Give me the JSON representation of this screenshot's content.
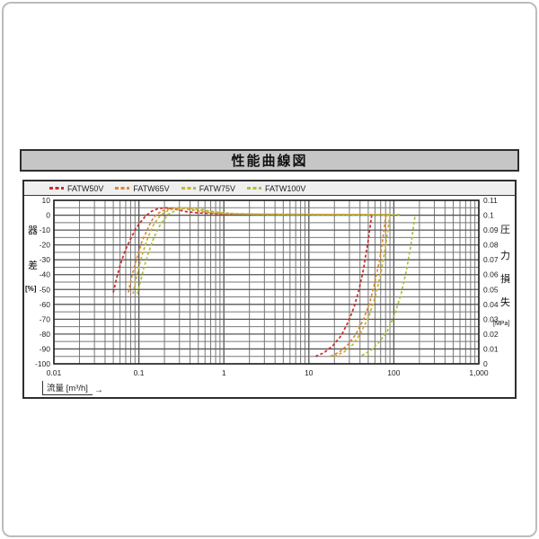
{
  "page": {
    "title": "性能曲線図"
  },
  "chart": {
    "left_axis_title": [
      "器",
      "差",
      "[%]"
    ],
    "right_axis_title": [
      "圧",
      "力",
      "損",
      "失",
      "[MPa]"
    ],
    "x_axis_label": "流量 [m³/h]",
    "x_axis_arrow": "→",
    "colors": {
      "grid_major": "#555555",
      "grid_minor": "#777777",
      "plot_frame": "#222222",
      "title_bg": "#c6c6c6",
      "legend_bg": "#efefef"
    }
  },
  "chart_data": {
    "type": "line",
    "title": "性能曲線図",
    "xlabel": "流量 [m³/h]",
    "ylabel_left": "器差 [%]",
    "ylabel_right": "圧力損失 [MPa]",
    "x_scale": "log",
    "xlim": [
      0.01,
      1000
    ],
    "x_tick_labels": [
      "0.01",
      "0.1",
      "1",
      "10",
      "100",
      "1,000"
    ],
    "ylim_left": [
      -100,
      10
    ],
    "left_tick_labels": [
      "10",
      "0",
      "-10",
      "-20",
      "-30",
      "-40",
      "-50",
      "-60",
      "-70",
      "-80",
      "-90",
      "-100"
    ],
    "ylim_right": [
      0,
      0.11
    ],
    "right_tick_labels": [
      "0.11",
      "0.1",
      "0.09",
      "0.08",
      "0.07",
      "0.06",
      "0.05",
      "0.04",
      "0.03",
      "0.02",
      "0.01",
      "0"
    ],
    "grid": true,
    "legend_position": "top",
    "series": [
      {
        "name": "FATW50V",
        "color": "#cc2929",
        "dash": true,
        "error_curve_pct": [
          [
            0.05,
            -52
          ],
          [
            0.055,
            -42
          ],
          [
            0.06,
            -34
          ],
          [
            0.065,
            -28
          ],
          [
            0.07,
            -23
          ],
          [
            0.08,
            -16
          ],
          [
            0.09,
            -10
          ],
          [
            0.1,
            -6
          ],
          [
            0.12,
            -0.5
          ],
          [
            0.14,
            2.5
          ],
          [
            0.17,
            4.5
          ],
          [
            0.21,
            5
          ],
          [
            0.27,
            4
          ],
          [
            0.35,
            2.5
          ],
          [
            0.5,
            1.5
          ],
          [
            0.8,
            1
          ],
          [
            2,
            0.6
          ],
          [
            8,
            0.4
          ],
          [
            25,
            0.3
          ],
          [
            55,
            0.3
          ]
        ],
        "pressure_loss_mpa": [
          [
            12,
            0.005
          ],
          [
            15,
            0.0074
          ],
          [
            19,
            0.012
          ],
          [
            24,
            0.019
          ],
          [
            29,
            0.028
          ],
          [
            34,
            0.038
          ],
          [
            39,
            0.05
          ],
          [
            44,
            0.064
          ],
          [
            50,
            0.083
          ],
          [
            55,
            0.1
          ]
        ]
      },
      {
        "name": "FATW65V",
        "color": "#e0862e",
        "dash": true,
        "error_curve_pct": [
          [
            0.075,
            -52
          ],
          [
            0.082,
            -42
          ],
          [
            0.09,
            -33
          ],
          [
            0.1,
            -24
          ],
          [
            0.11,
            -17
          ],
          [
            0.125,
            -10
          ],
          [
            0.14,
            -4
          ],
          [
            0.16,
            0.5
          ],
          [
            0.19,
            3
          ],
          [
            0.24,
            4.8
          ],
          [
            0.3,
            5
          ],
          [
            0.4,
            3.8
          ],
          [
            0.55,
            2.3
          ],
          [
            0.8,
            1.3
          ],
          [
            1.5,
            0.8
          ],
          [
            4,
            0.5
          ],
          [
            15,
            0.4
          ],
          [
            82,
            0.3
          ]
        ],
        "pressure_loss_mpa": [
          [
            18,
            0.005
          ],
          [
            23,
            0.008
          ],
          [
            29,
            0.013
          ],
          [
            36,
            0.02
          ],
          [
            44,
            0.03
          ],
          [
            52,
            0.041
          ],
          [
            60,
            0.055
          ],
          [
            68,
            0.07
          ],
          [
            75,
            0.086
          ],
          [
            81,
            0.1
          ]
        ]
      },
      {
        "name": "FATW75V",
        "color": "#c9b430",
        "dash": true,
        "error_curve_pct": [
          [
            0.085,
            -53
          ],
          [
            0.093,
            -43
          ],
          [
            0.102,
            -33
          ],
          [
            0.113,
            -24
          ],
          [
            0.13,
            -14
          ],
          [
            0.15,
            -6
          ],
          [
            0.18,
            0
          ],
          [
            0.22,
            3.2
          ],
          [
            0.28,
            4.8
          ],
          [
            0.37,
            5
          ],
          [
            0.5,
            3.8
          ],
          [
            0.7,
            2.2
          ],
          [
            1,
            1.2
          ],
          [
            2.5,
            0.7
          ],
          [
            10,
            0.5
          ],
          [
            90,
            0.4
          ]
        ],
        "pressure_loss_mpa": [
          [
            20,
            0.005
          ],
          [
            26,
            0.008
          ],
          [
            33,
            0.013
          ],
          [
            41,
            0.021
          ],
          [
            51,
            0.032
          ],
          [
            61,
            0.046
          ],
          [
            71,
            0.062
          ],
          [
            81,
            0.081
          ],
          [
            90,
            0.1
          ]
        ]
      },
      {
        "name": "FATW100V",
        "color": "#b2bc3c",
        "dash": true,
        "error_curve_pct": [
          [
            0.096,
            -53
          ],
          [
            0.105,
            -44
          ],
          [
            0.115,
            -35
          ],
          [
            0.13,
            -25
          ],
          [
            0.15,
            -15
          ],
          [
            0.18,
            -6
          ],
          [
            0.22,
            0.5
          ],
          [
            0.28,
            3.5
          ],
          [
            0.37,
            5
          ],
          [
            0.5,
            4.5
          ],
          [
            0.65,
            3
          ],
          [
            0.9,
            1.8
          ],
          [
            1.4,
            1
          ],
          [
            4,
            0.6
          ],
          [
            20,
            0.5
          ],
          [
            120,
            0.4
          ]
        ],
        "pressure_loss_mpa": [
          [
            42,
            0.0056
          ],
          [
            54,
            0.0092
          ],
          [
            68,
            0.015
          ],
          [
            84,
            0.022
          ],
          [
            102,
            0.033
          ],
          [
            122,
            0.047
          ],
          [
            142,
            0.064
          ],
          [
            160,
            0.081
          ],
          [
            178,
            0.1
          ]
        ]
      }
    ]
  }
}
